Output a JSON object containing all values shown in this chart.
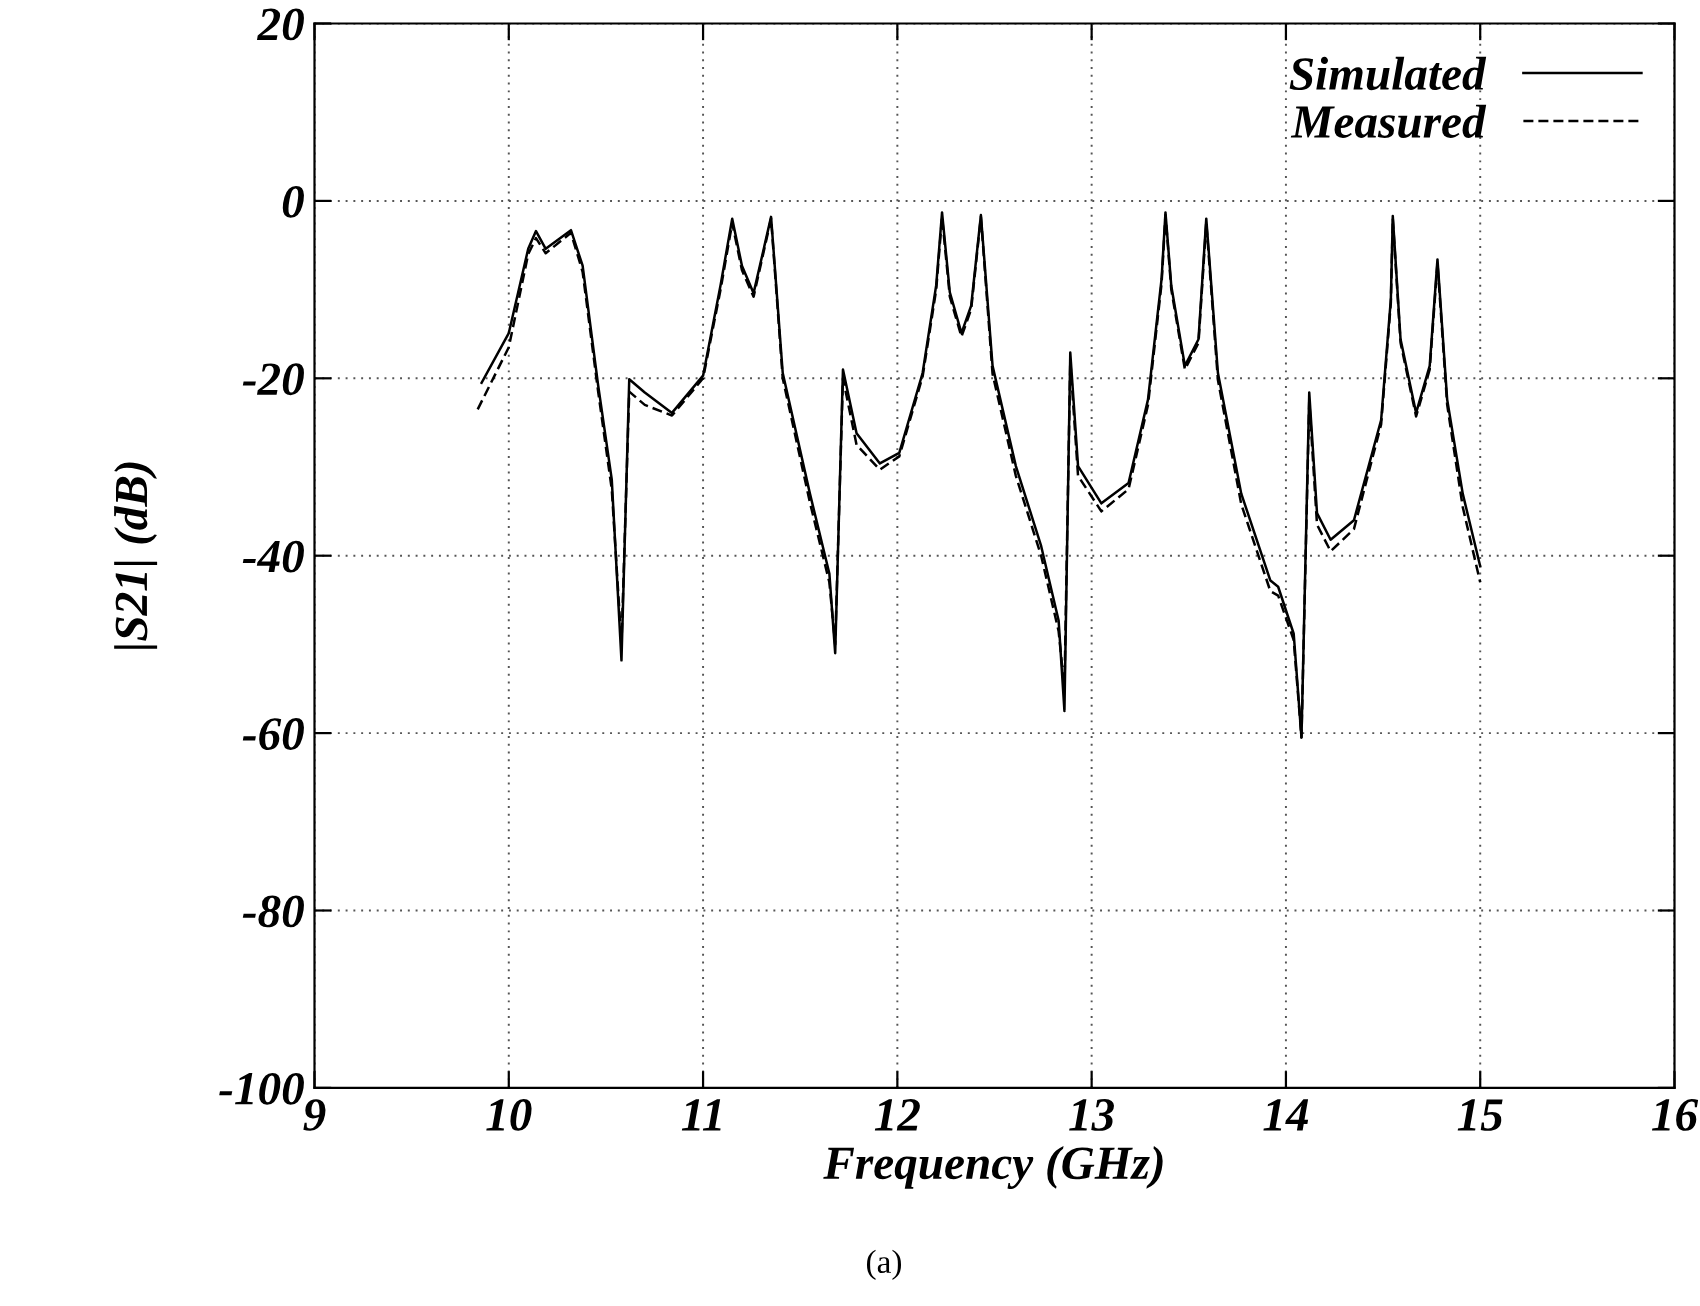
{
  "chart_data": {
    "type": "line",
    "xlabel": "Frequency (GHz)",
    "ylabel": "|S21| (dB)",
    "xlim": [
      9,
      16
    ],
    "ylim": [
      -100,
      20
    ],
    "xticks": [
      9,
      10,
      11,
      12,
      13,
      14,
      15,
      16
    ],
    "yticks": [
      -100,
      -80,
      -60,
      -40,
      -20,
      0,
      20
    ],
    "grid": true,
    "legend": "top right",
    "annotations": [
      "(a)"
    ],
    "series": [
      {
        "name": "Simulated",
        "color": "#000000",
        "line_style": "solid",
        "x": [
          9.86,
          10.0,
          10.1,
          10.14,
          10.19,
          10.32,
          10.38,
          10.46,
          10.53,
          10.58,
          10.62,
          10.7,
          10.84,
          11.0,
          11.09,
          11.15,
          11.2,
          11.26,
          11.35,
          11.41,
          11.55,
          11.65,
          11.68,
          11.72,
          11.79,
          11.91,
          12.01,
          12.13,
          12.2,
          12.23,
          12.27,
          12.33,
          12.38,
          12.43,
          12.49,
          12.61,
          12.74,
          12.83,
          12.86,
          12.89,
          12.93,
          13.05,
          13.19,
          13.29,
          13.36,
          13.38,
          13.41,
          13.48,
          13.55,
          13.59,
          13.65,
          13.77,
          13.92,
          13.96,
          14.04,
          14.08,
          14.12,
          14.16,
          14.23,
          14.35,
          14.49,
          14.54,
          14.55,
          14.59,
          14.67,
          14.74,
          14.78,
          14.83,
          14.91,
          15.0
        ],
        "values": [
          -20.5,
          -14.9,
          -5.4,
          -3.4,
          -5.4,
          -3.3,
          -7.3,
          -20.8,
          -31.4,
          -51.8,
          -20.1,
          -21.6,
          -23.9,
          -19.7,
          -9.5,
          -2.0,
          -7.3,
          -10.4,
          -1.8,
          -19.4,
          -33,
          -42,
          -51,
          -19,
          -26.2,
          -29.6,
          -28.4,
          -19.4,
          -9.5,
          -1.3,
          -10.3,
          -14.9,
          -11.8,
          -1.6,
          -18.6,
          -29.9,
          -38.9,
          -47.3,
          -57.5,
          -17.1,
          -29.9,
          -34.1,
          -31.8,
          -22.4,
          -8.8,
          -1.3,
          -9.6,
          -18.6,
          -15.6,
          -2.0,
          -19.4,
          -33,
          -42.8,
          -43.5,
          -48.8,
          -60.5,
          -21.6,
          -35.2,
          -38.2,
          -36,
          -24.7,
          -11.1,
          -1.7,
          -15.6,
          -23.9,
          -18.6,
          -6.6,
          -22.4,
          -33,
          -41.2
        ]
      },
      {
        "name": "Measured",
        "color": "#000000",
        "line_style": "dashed",
        "x": [
          9.84,
          10.0,
          10.1,
          10.14,
          10.19,
          10.32,
          10.38,
          10.46,
          10.53,
          10.58,
          10.62,
          10.7,
          10.84,
          11.0,
          11.09,
          11.15,
          11.2,
          11.26,
          11.35,
          11.41,
          11.55,
          11.65,
          11.68,
          11.72,
          11.79,
          11.91,
          12.01,
          12.13,
          12.2,
          12.23,
          12.27,
          12.33,
          12.38,
          12.43,
          12.49,
          12.61,
          12.74,
          12.83,
          12.86,
          12.89,
          12.93,
          13.05,
          13.19,
          13.29,
          13.36,
          13.38,
          13.41,
          13.48,
          13.55,
          13.59,
          13.65,
          13.77,
          13.92,
          13.96,
          14.04,
          14.08,
          14.12,
          14.16,
          14.23,
          14.35,
          14.49,
          14.54,
          14.55,
          14.59,
          14.67,
          14.74,
          14.78,
          14.83,
          14.91,
          15.0
        ],
        "values": [
          -23.5,
          -16.5,
          -6.0,
          -4.2,
          -5.9,
          -3.6,
          -8.0,
          -21.5,
          -32.5,
          -50.0,
          -21.5,
          -23.0,
          -24.2,
          -20.0,
          -10.0,
          -2.5,
          -7.8,
          -10.8,
          -2.0,
          -20.0,
          -34,
          -43,
          -50,
          -20,
          -27.5,
          -30.3,
          -28.8,
          -19.8,
          -10.0,
          -1.8,
          -10.8,
          -15.3,
          -12.2,
          -1.8,
          -19.5,
          -31.0,
          -40.0,
          -48.5,
          -55,
          -18.0,
          -31.0,
          -35.0,
          -32.5,
          -23.0,
          -9.3,
          -1.6,
          -10.0,
          -19.0,
          -16.0,
          -2.4,
          -20.2,
          -34.2,
          -44.0,
          -44.5,
          -49.5,
          -60.5,
          -22.5,
          -36.5,
          -39.5,
          -37,
          -25.2,
          -11.5,
          -2.0,
          -16.0,
          -24.3,
          -19.0,
          -7.0,
          -23.0,
          -34.5,
          -43.0
        ]
      }
    ]
  }
}
